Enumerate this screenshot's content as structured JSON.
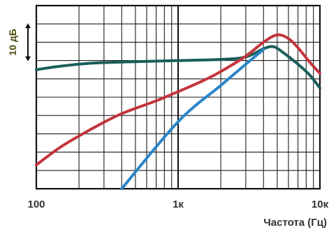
{
  "chart_data": {
    "type": "line",
    "xscale": "log",
    "xlim": [
      100,
      10000
    ],
    "ylim": [
      -35,
      15
    ],
    "ytick_step": 5,
    "xticks": [
      {
        "value": 100,
        "label": "100"
      },
      {
        "value": 1000,
        "label": "1к"
      },
      {
        "value": 10000,
        "label": "10к"
      }
    ],
    "xlabel": "Частота (Гц)",
    "scale_label": "10 дБ",
    "scale_bar": [
      0,
      10
    ],
    "grid": true,
    "series": [
      {
        "color": "#1a5e5a",
        "points": [
          [
            100,
            -2.5
          ],
          [
            150,
            -1.5
          ],
          [
            250,
            -0.7
          ],
          [
            500,
            -0.3
          ],
          [
            1000,
            0
          ],
          [
            2000,
            0.3
          ],
          [
            3000,
            1
          ],
          [
            4000,
            3.2
          ],
          [
            4700,
            3.8
          ],
          [
            5500,
            2.2
          ],
          [
            7000,
            -1
          ],
          [
            8500,
            -4
          ],
          [
            10000,
            -7.5
          ]
        ]
      },
      {
        "color": "#c4343c",
        "points": [
          [
            100,
            -28.5
          ],
          [
            150,
            -23.5
          ],
          [
            250,
            -18.5
          ],
          [
            400,
            -14.5
          ],
          [
            700,
            -11
          ],
          [
            1000,
            -8.5
          ],
          [
            1500,
            -5.5
          ],
          [
            2000,
            -3
          ],
          [
            3000,
            1.2
          ],
          [
            4000,
            5
          ],
          [
            5000,
            7
          ],
          [
            6000,
            6
          ],
          [
            7000,
            3.5
          ],
          [
            8500,
            -0.5
          ],
          [
            10000,
            -3.5
          ]
        ]
      },
      {
        "color": "#2a85c8",
        "points": [
          [
            400,
            -35
          ],
          [
            1000,
            -16.7
          ],
          [
            2000,
            -6.8
          ],
          [
            3000,
            -1
          ],
          [
            4000,
            3
          ]
        ]
      }
    ]
  }
}
